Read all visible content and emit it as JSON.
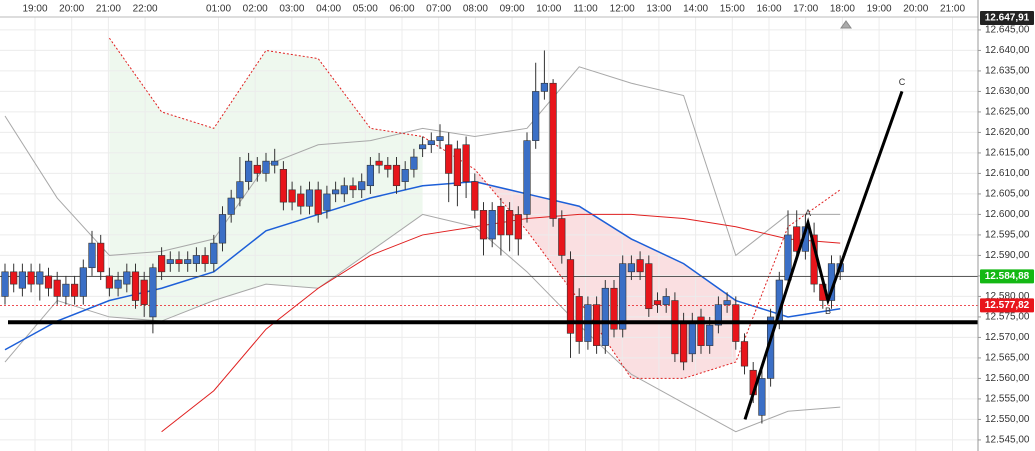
{
  "chart_data": {
    "type": "candlestick",
    "categories": [
      "19:00",
      "20:00",
      "21:00",
      "22:00",
      null,
      "01:00",
      "02:00",
      "03:00",
      "04:00",
      "05:00",
      "06:00",
      "07:00",
      "08:00",
      "09:00",
      "10:00",
      "11:00",
      "12:00",
      "13:00",
      "14:00",
      "15:00",
      "16:00",
      "17:00",
      "18:00",
      "19:00",
      "20:00",
      "21:00"
    ],
    "open": [
      12.58,
      12.586,
      12.582,
      12.586,
      12.583,
      12.585,
      12.584,
      12.58,
      12.583,
      12.58,
      12.587,
      12.593,
      12.585,
      12.582,
      12.583,
      12.586,
      12.584,
      12.575,
      12.59,
      12.588,
      12.589,
      12.588,
      12.588,
      12.59,
      12.588,
      12.593,
      12.6,
      12.604,
      12.608,
      12.612,
      12.61,
      12.612,
      12.611,
      12.606,
      12.605,
      12.602,
      12.606,
      12.601,
      12.605,
      12.605,
      12.607,
      12.606,
      12.607,
      12.613,
      12.612,
      12.612,
      12.608,
      12.611,
      12.616,
      12.617,
      12.618,
      12.617,
      12.616,
      12.617,
      12.608,
      12.601,
      12.594,
      12.602,
      12.601,
      12.6,
      12.6,
      12.618,
      12.63,
      12.632,
      12.599,
      12.589,
      12.58,
      12.569,
      12.578,
      12.568,
      12.582,
      12.572,
      12.586,
      12.589,
      12.588,
      12.579,
      12.578,
      12.579,
      12.574,
      12.566,
      12.575,
      12.568,
      12.573,
      12.578,
      12.578,
      12.569,
      12.562,
      12.551,
      12.56,
      12.574,
      12.584,
      12.597,
      12.591,
      12.595,
      12.583,
      12.579,
      12.586
    ],
    "high": [
      12.588,
      12.588,
      12.588,
      12.588,
      12.588,
      12.587,
      12.586,
      12.585,
      12.585,
      12.589,
      12.596,
      12.595,
      12.587,
      12.586,
      12.588,
      12.588,
      12.586,
      12.588,
      12.592,
      12.591,
      12.591,
      12.591,
      12.592,
      12.592,
      12.595,
      12.602,
      12.606,
      12.614,
      12.615,
      12.614,
      12.615,
      12.616,
      12.613,
      12.608,
      12.607,
      12.608,
      12.608,
      12.607,
      12.608,
      12.609,
      12.609,
      12.61,
      12.614,
      12.615,
      12.614,
      12.614,
      12.613,
      12.616,
      12.619,
      12.62,
      12.622,
      12.62,
      12.618,
      12.619,
      12.61,
      12.603,
      12.603,
      12.604,
      12.603,
      12.602,
      12.62,
      12.637,
      12.64,
      12.633,
      12.601,
      12.591,
      12.582,
      12.58,
      12.58,
      12.584,
      12.584,
      12.59,
      12.59,
      12.591,
      12.59,
      12.581,
      12.582,
      12.581,
      12.576,
      12.576,
      12.577,
      12.575,
      12.58,
      12.581,
      12.58,
      12.571,
      12.564,
      12.562,
      12.577,
      12.586,
      12.601,
      12.601,
      12.6,
      12.598,
      12.585,
      12.59,
      12.59
    ],
    "low": [
      12.578,
      12.581,
      12.58,
      12.581,
      12.579,
      12.58,
      12.578,
      12.578,
      12.578,
      12.578,
      12.585,
      12.584,
      12.58,
      12.58,
      12.581,
      12.577,
      12.575,
      12.571,
      12.584,
      12.586,
      12.586,
      12.586,
      12.586,
      12.586,
      12.586,
      12.591,
      12.598,
      12.602,
      12.606,
      12.608,
      12.608,
      12.61,
      12.601,
      12.601,
      12.6,
      12.6,
      12.598,
      12.599,
      12.603,
      12.603,
      12.604,
      12.604,
      12.605,
      12.61,
      12.609,
      12.605,
      12.606,
      12.609,
      12.614,
      12.615,
      12.616,
      12.603,
      12.602,
      12.604,
      12.599,
      12.59,
      12.592,
      12.59,
      12.591,
      12.59,
      12.598,
      12.616,
      12.628,
      12.597,
      12.588,
      12.565,
      12.566,
      12.567,
      12.566,
      12.566,
      12.57,
      12.57,
      12.584,
      12.584,
      12.575,
      12.576,
      12.576,
      12.564,
      12.562,
      12.564,
      12.566,
      12.566,
      12.571,
      12.576,
      12.567,
      12.561,
      12.554,
      12.549,
      12.558,
      12.572,
      12.582,
      12.589,
      12.589,
      12.581,
      12.577,
      12.577,
      12.584
    ],
    "close": [
      12.586,
      12.583,
      12.586,
      12.583,
      12.586,
      12.582,
      12.58,
      12.583,
      12.58,
      12.587,
      12.593,
      12.586,
      12.582,
      12.584,
      12.586,
      12.579,
      12.578,
      12.587,
      12.586,
      12.589,
      12.588,
      12.589,
      12.59,
      12.588,
      12.593,
      12.6,
      12.604,
      12.608,
      12.613,
      12.61,
      12.613,
      12.613,
      12.603,
      12.603,
      12.602,
      12.606,
      12.6,
      12.605,
      12.606,
      12.607,
      12.606,
      12.608,
      12.612,
      12.612,
      12.611,
      12.607,
      12.611,
      12.614,
      12.617,
      12.618,
      12.619,
      12.61,
      12.607,
      12.608,
      12.601,
      12.594,
      12.601,
      12.595,
      12.595,
      12.594,
      12.618,
      12.63,
      12.632,
      12.599,
      12.59,
      12.571,
      12.569,
      12.578,
      12.568,
      12.582,
      12.572,
      12.588,
      12.588,
      12.586,
      12.577,
      12.578,
      12.58,
      12.566,
      12.564,
      12.574,
      12.568,
      12.573,
      12.578,
      12.579,
      12.569,
      12.563,
      12.556,
      12.56,
      12.575,
      12.584,
      12.595,
      12.591,
      12.597,
      12.583,
      12.579,
      12.588,
      12.588
    ],
    "up_color": "#3b6fc6",
    "down_color": "#e8151b",
    "indicators": {
      "band_upper": {
        "color": "#a8a8a8",
        "values": [
          12.624,
          12.604,
          12.59,
          12.591,
          12.594,
          12.612,
          12.617,
          12.618,
          12.621,
          12.619,
          12.621,
          12.636,
          12.632,
          12.629,
          12.59,
          12.6,
          12.6
        ]
      },
      "band_lower": {
        "color": "#a8a8a8",
        "values": [
          12.564,
          12.579,
          12.575,
          12.574,
          12.579,
          12.583,
          12.582,
          12.591,
          12.6,
          12.597,
          12.586,
          12.573,
          12.561,
          12.554,
          12.547,
          12.552,
          12.553
        ]
      },
      "ma_fast": {
        "color": "#1d5fd8",
        "values": [
          12.567,
          12.574,
          12.579,
          12.582,
          12.586,
          12.596,
          12.6,
          12.604,
          12.607,
          12.608,
          12.605,
          12.602,
          12.594,
          12.588,
          12.579,
          12.575,
          12.577
        ]
      },
      "ma_slow": {
        "color": "#e02020",
        "values": [
          null,
          null,
          null,
          12.547,
          12.557,
          12.572,
          12.582,
          12.59,
          12.595,
          12.597,
          12.599,
          12.6,
          12.6,
          12.599,
          12.597,
          12.594,
          12.593
        ]
      },
      "stop_dotted": {
        "color": "#e02020",
        "values": [
          null,
          null,
          12.643,
          12.625,
          12.621,
          12.64,
          12.638,
          12.621,
          12.619,
          12.611,
          12.596,
          12.579,
          12.56,
          12.56,
          12.564,
          12.597,
          12.606
        ]
      }
    },
    "support": 12.5737,
    "pattern": {
      "labels": [
        null,
        "A",
        "B",
        "C"
      ],
      "values": [
        12.55,
        12.598,
        12.579,
        12.63
      ]
    },
    "price_markers": [
      {
        "value": 12.64791,
        "label": "12.647,91",
        "color": "#222222"
      },
      {
        "value": 12.58488,
        "label": "12.584,88",
        "color": "#14b814"
      },
      {
        "value": 12.57782,
        "label": "12.577,82",
        "color": "#e8151b"
      }
    ],
    "ylim": [
      12.5423,
      12.6523
    ],
    "yticks": [
      {
        "value": 12.545,
        "label": "12.545,00"
      },
      {
        "value": 12.55,
        "label": "12.550,00"
      },
      {
        "value": 12.555,
        "label": "12.555,00"
      },
      {
        "value": 12.56,
        "label": "12.560,00"
      },
      {
        "value": 12.565,
        "label": "12.565,00"
      },
      {
        "value": 12.57,
        "label": "12.570,00"
      },
      {
        "value": 12.575,
        "label": "12.575,00"
      },
      {
        "value": 12.58,
        "label": "12.580,00"
      },
      {
        "value": 12.585,
        "label": "12.585,00"
      },
      {
        "value": 12.59,
        "label": "12.590,00"
      },
      {
        "value": 12.595,
        "label": "12.595,00"
      },
      {
        "value": 12.6,
        "label": "12.600,00"
      },
      {
        "value": 12.605,
        "label": "12.605,00"
      },
      {
        "value": 12.61,
        "label": "12.610,00"
      },
      {
        "value": 12.615,
        "label": "12.615,00"
      },
      {
        "value": 12.62,
        "label": "12.620,00"
      },
      {
        "value": 12.625,
        "label": "12.625,00"
      },
      {
        "value": 12.63,
        "label": "12.630,00"
      },
      {
        "value": 12.635,
        "label": "12.635,00"
      },
      {
        "value": 12.64,
        "label": "12.640,00"
      },
      {
        "value": 12.645,
        "label": "12.645,00"
      }
    ],
    "grid": true
  }
}
